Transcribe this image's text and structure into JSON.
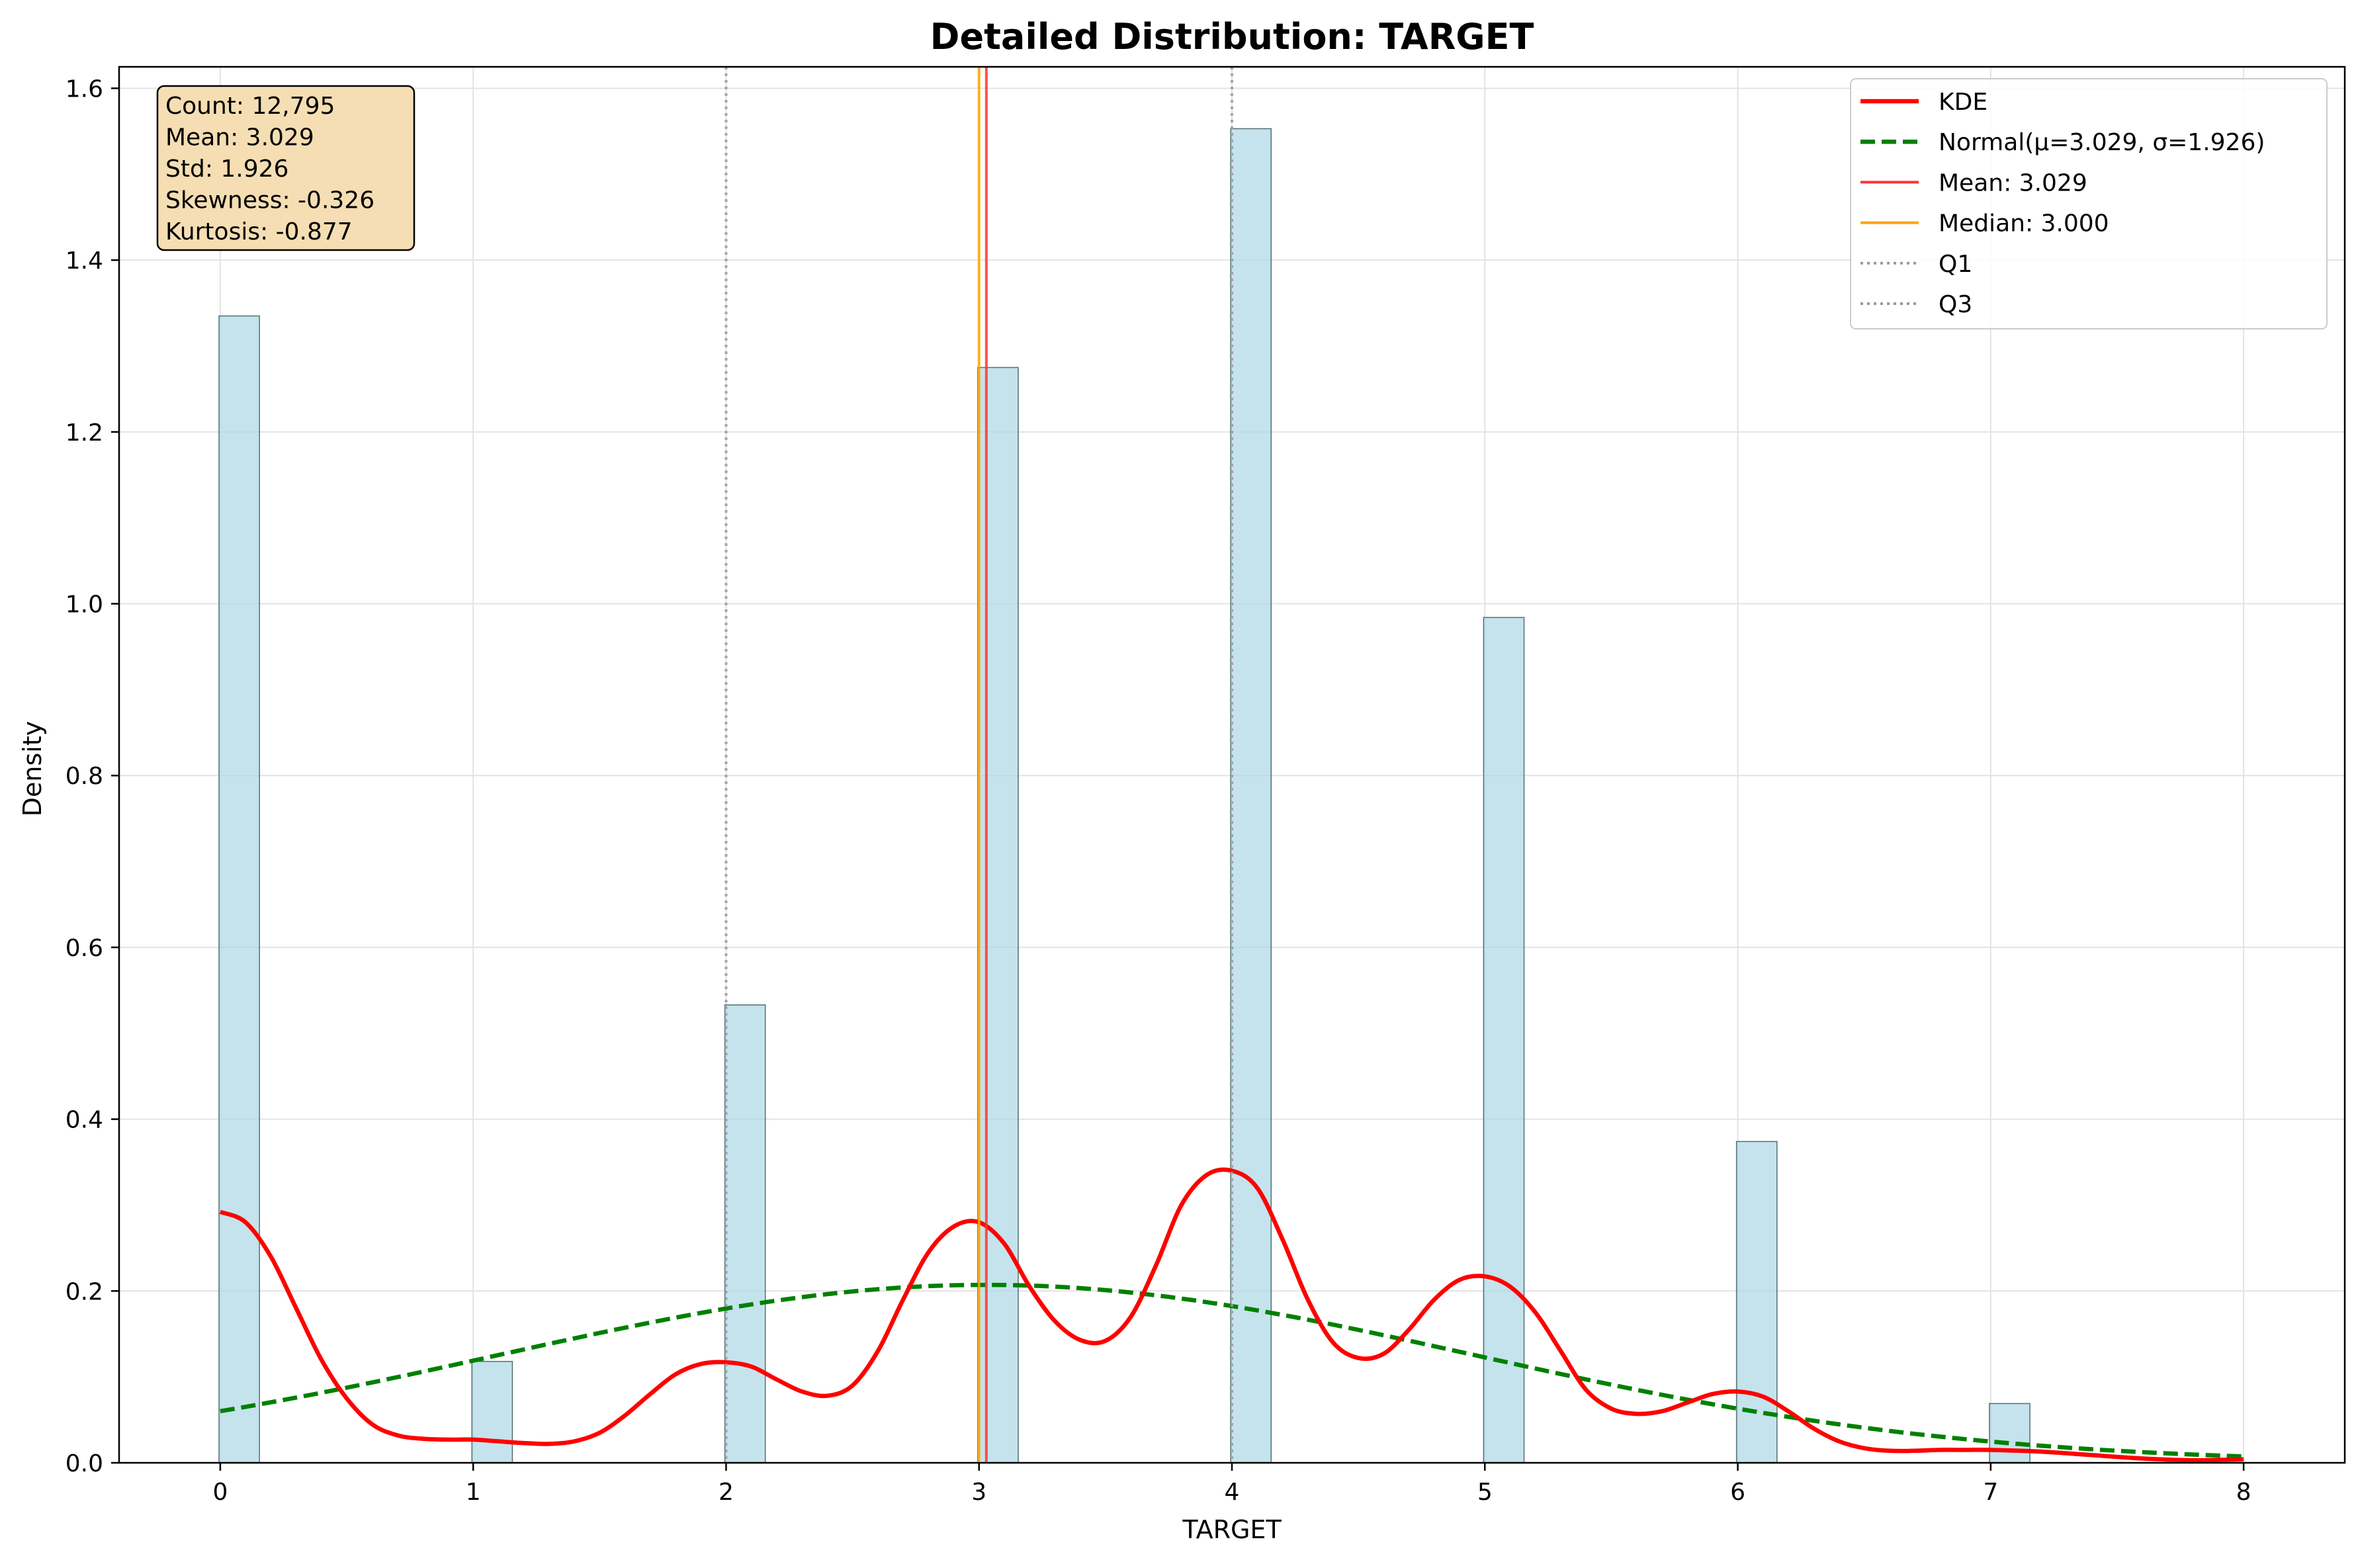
{
  "chart_data": {
    "type": "histogram",
    "title": "Detailed Distribution: TARGET",
    "xlabel": "TARGET",
    "ylabel": "Density",
    "xlim": [
      -0.4,
      8.4
    ],
    "ylim": [
      0,
      1.625
    ],
    "x_ticks": [
      0,
      1,
      2,
      3,
      4,
      5,
      6,
      7,
      8
    ],
    "y_ticks": [
      0.0,
      0.2,
      0.4,
      0.6,
      0.8,
      1.0,
      1.2,
      1.4,
      1.6
    ],
    "x_tick_labels": [
      "0",
      "1",
      "2",
      "3",
      "4",
      "5",
      "6",
      "7",
      "8"
    ],
    "y_tick_labels": [
      "0.0",
      "0.2",
      "0.4",
      "0.6",
      "0.8",
      "1.0",
      "1.2",
      "1.4",
      "1.6"
    ],
    "grid": true,
    "legend_position": "top-right",
    "bar_width": 0.16,
    "histogram": {
      "x": [
        0,
        1,
        2,
        3,
        4,
        5,
        6,
        7
      ],
      "density": [
        1.335,
        0.118,
        0.533,
        1.275,
        1.553,
        0.984,
        0.374,
        0.069
      ],
      "color": "#add8e6"
    },
    "kde": {
      "name": "KDE",
      "color": "#ff0000",
      "x": [
        0,
        0.1,
        0.2,
        0.3,
        0.4,
        0.5,
        0.6,
        0.7,
        0.8,
        0.9,
        1.0,
        1.1,
        1.2,
        1.3,
        1.4,
        1.5,
        1.6,
        1.7,
        1.8,
        1.9,
        2.0,
        2.1,
        2.2,
        2.3,
        2.4,
        2.5,
        2.6,
        2.7,
        2.8,
        2.9,
        3.0,
        3.1,
        3.2,
        3.3,
        3.4,
        3.5,
        3.6,
        3.7,
        3.8,
        3.9,
        4.0,
        4.1,
        4.2,
        4.3,
        4.4,
        4.5,
        4.6,
        4.7,
        4.8,
        4.9,
        5.0,
        5.1,
        5.2,
        5.3,
        5.4,
        5.5,
        5.6,
        5.7,
        5.8,
        5.9,
        6.0,
        6.1,
        6.2,
        6.3,
        6.4,
        6.5,
        6.6,
        6.7,
        6.8,
        6.9,
        7.0,
        7.2,
        7.4,
        7.6,
        7.8,
        8.0
      ],
      "y": [
        0.292,
        0.28,
        0.24,
        0.18,
        0.12,
        0.075,
        0.045,
        0.032,
        0.028,
        0.027,
        0.027,
        0.025,
        0.023,
        0.022,
        0.025,
        0.035,
        0.055,
        0.08,
        0.103,
        0.115,
        0.117,
        0.112,
        0.097,
        0.083,
        0.078,
        0.09,
        0.13,
        0.19,
        0.245,
        0.275,
        0.28,
        0.255,
        0.205,
        0.165,
        0.143,
        0.142,
        0.17,
        0.23,
        0.3,
        0.335,
        0.34,
        0.32,
        0.26,
        0.19,
        0.14,
        0.122,
        0.127,
        0.155,
        0.19,
        0.213,
        0.217,
        0.205,
        0.175,
        0.13,
        0.085,
        0.063,
        0.057,
        0.06,
        0.07,
        0.08,
        0.083,
        0.077,
        0.06,
        0.04,
        0.025,
        0.017,
        0.014,
        0.014,
        0.015,
        0.015,
        0.015,
        0.013,
        0.009,
        0.005,
        0.003,
        0.004
      ]
    },
    "normal": {
      "name": "Normal(μ=3.029, σ=1.926)",
      "color": "#008000",
      "mu": 3.029,
      "sigma": 1.926
    },
    "vlines": [
      {
        "name": "Mean: 3.029",
        "x": 3.029,
        "color": "#ff3333",
        "style": "solid"
      },
      {
        "name": "Median: 3.000",
        "x": 3.0,
        "color": "#ffa500",
        "style": "solid"
      },
      {
        "name": "Q1",
        "x": 2.0,
        "color": "#999999",
        "style": "dotted"
      },
      {
        "name": "Q3",
        "x": 4.0,
        "color": "#999999",
        "style": "dotted"
      }
    ],
    "legend": [
      {
        "label": "KDE",
        "color": "#ff0000",
        "style": "solid-thick"
      },
      {
        "label": "Normal(μ=3.029, σ=1.926)",
        "color": "#008000",
        "style": "dashed"
      },
      {
        "label": "Mean: 3.029",
        "color": "#ff3333",
        "style": "solid"
      },
      {
        "label": "Median: 3.000",
        "color": "#ffa500",
        "style": "solid"
      },
      {
        "label": "Q1",
        "color": "#999999",
        "style": "dotted"
      },
      {
        "label": "Q3",
        "color": "#999999",
        "style": "dotted"
      }
    ],
    "stats_box": {
      "lines": [
        "Count: 12,795",
        "Mean: 3.029",
        "Std: 1.926",
        "Skewness: -0.326",
        "Kurtosis: -0.877"
      ],
      "background": "#f5deb3"
    }
  }
}
